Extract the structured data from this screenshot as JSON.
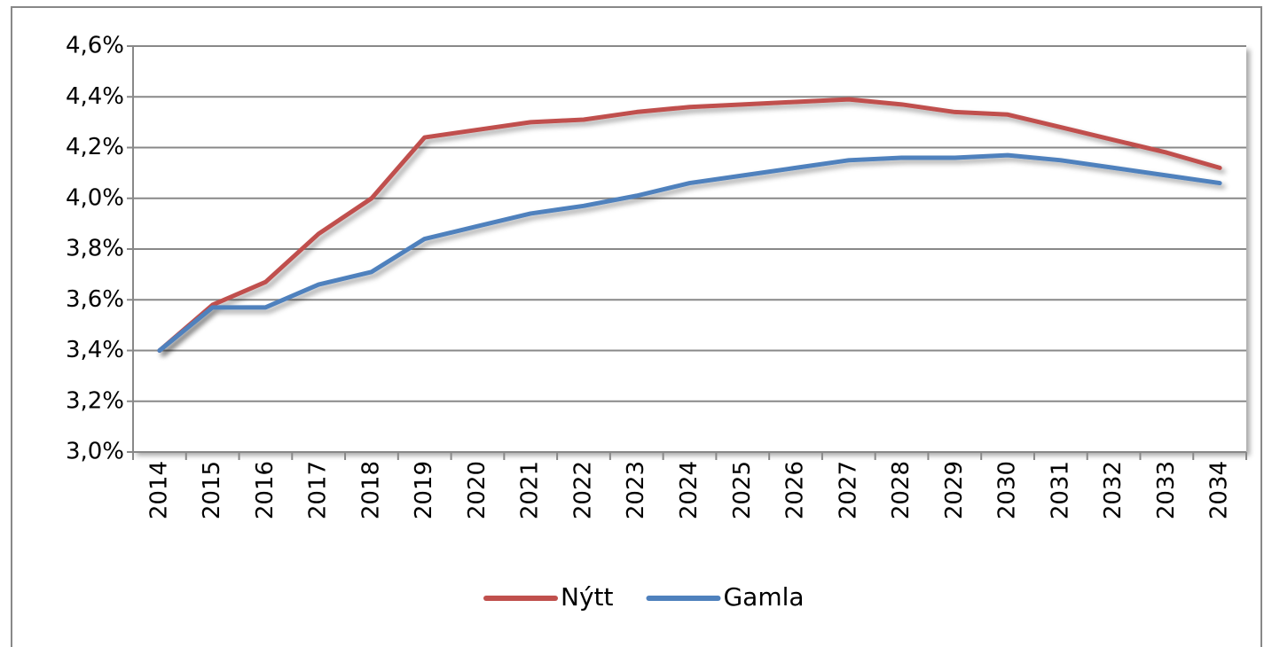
{
  "chart_data": {
    "type": "line",
    "categories": [
      "2014",
      "2015",
      "2016",
      "2017",
      "2018",
      "2019",
      "2020",
      "2021",
      "2022",
      "2023",
      "2024",
      "2025",
      "2026",
      "2027",
      "2028",
      "2029",
      "2030",
      "2031",
      "2032",
      "2033",
      "2034"
    ],
    "series": [
      {
        "name": "Nýtt",
        "color": "#c0504d",
        "values": [
          3.4,
          3.58,
          3.67,
          3.86,
          4.0,
          4.24,
          4.27,
          4.3,
          4.31,
          4.34,
          4.36,
          4.37,
          4.38,
          4.39,
          4.37,
          4.34,
          4.33,
          4.28,
          4.23,
          4.18,
          4.12
        ]
      },
      {
        "name": "Gamla",
        "color": "#4f81bd",
        "values": [
          3.4,
          3.57,
          3.57,
          3.66,
          3.71,
          3.84,
          3.89,
          3.94,
          3.97,
          4.01,
          4.06,
          4.09,
          4.12,
          4.15,
          4.16,
          4.16,
          4.17,
          4.15,
          4.12,
          4.09,
          4.06
        ]
      }
    ],
    "ylim": [
      3.0,
      4.6
    ],
    "yticks": [
      {
        "value": 3.0,
        "label": "3,0%"
      },
      {
        "value": 3.2,
        "label": "3,2%"
      },
      {
        "value": 3.4,
        "label": "3,4%"
      },
      {
        "value": 3.6,
        "label": "3,6%"
      },
      {
        "value": 3.8,
        "label": "3,8%"
      },
      {
        "value": 4.0,
        "label": "4,0%"
      },
      {
        "value": 4.2,
        "label": "4,2%"
      },
      {
        "value": 4.4,
        "label": "4,4%"
      },
      {
        "value": 4.6,
        "label": "4,6%"
      }
    ],
    "grid": true,
    "legend": "bottom"
  }
}
